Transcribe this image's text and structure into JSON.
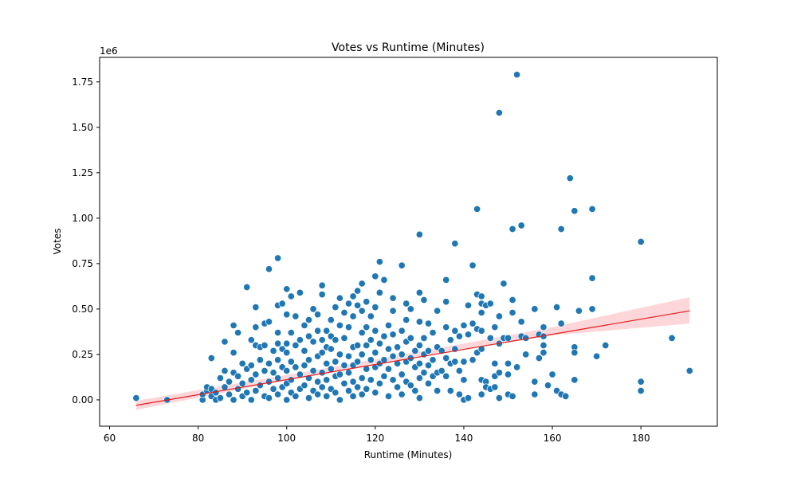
{
  "chart_data": {
    "type": "scatter",
    "title": "Votes vs Runtime (Minutes)",
    "xlabel": "Runtime (Minutes)",
    "ylabel": "Votes",
    "y_offset_label": "1e6",
    "xlim": [
      57.75,
      197.25
    ],
    "ylim": [
      -0.145,
      1.885
    ],
    "xticks": [
      60,
      80,
      100,
      120,
      140,
      160,
      180
    ],
    "xtick_labels": [
      "60",
      "80",
      "100",
      "120",
      "140",
      "160",
      "180"
    ],
    "yticks": [
      0.0,
      0.25,
      0.5,
      0.75,
      1.0,
      1.25,
      1.5,
      1.75
    ],
    "ytick_labels": [
      "0.00",
      "0.25",
      "0.50",
      "0.75",
      "1.00",
      "1.25",
      "1.50",
      "1.75"
    ],
    "grid": false,
    "point_color": "#1f77b4",
    "regression_color": "#e31a1c",
    "band_color": "#fbb4b9",
    "regression": {
      "x": [
        66,
        191
      ],
      "y": [
        -0.03,
        0.49
      ]
    },
    "confidence_band": {
      "x": [
        66,
        100,
        130,
        160,
        191
      ],
      "upper": [
        -0.005,
        0.137,
        0.265,
        0.4,
        0.565
      ],
      "lower": [
        -0.055,
        0.108,
        0.235,
        0.355,
        0.42
      ]
    },
    "points": [
      [
        66,
        0.01
      ],
      [
        73,
        0.0
      ],
      [
        81,
        0.0
      ],
      [
        81,
        0.03
      ],
      [
        82,
        0.05
      ],
      [
        82,
        0.07
      ],
      [
        83,
        0.02
      ],
      [
        83,
        0.06
      ],
      [
        83,
        0.23
      ],
      [
        84,
        0.0
      ],
      [
        84,
        0.04
      ],
      [
        85,
        0.12
      ],
      [
        85,
        0.01
      ],
      [
        86,
        0.16
      ],
      [
        86,
        0.32
      ],
      [
        86,
        0.07
      ],
      [
        87,
        0.03
      ],
      [
        87,
        0.1
      ],
      [
        88,
        0.41
      ],
      [
        88,
        0.26
      ],
      [
        88,
        0.15
      ],
      [
        88,
        0.0
      ],
      [
        89,
        0.37
      ],
      [
        89,
        0.13
      ],
      [
        89,
        0.06
      ],
      [
        90,
        0.2
      ],
      [
        90,
        0.09
      ],
      [
        90,
        0.02
      ],
      [
        91,
        0.62
      ],
      [
        91,
        0.17
      ],
      [
        91,
        0.04
      ],
      [
        92,
        0.33
      ],
      [
        92,
        0.19
      ],
      [
        92,
        0.11
      ],
      [
        92,
        0.0
      ],
      [
        93,
        0.51
      ],
      [
        93,
        0.4
      ],
      [
        93,
        0.3
      ],
      [
        93,
        0.14
      ],
      [
        93,
        0.05
      ],
      [
        94,
        0.29
      ],
      [
        94,
        0.22
      ],
      [
        94,
        0.08
      ],
      [
        95,
        0.42
      ],
      [
        95,
        0.3
      ],
      [
        95,
        0.16
      ],
      [
        95,
        0.02
      ],
      [
        96,
        0.72
      ],
      [
        96,
        0.43
      ],
      [
        96,
        0.2
      ],
      [
        96,
        0.1
      ],
      [
        96,
        0.01
      ],
      [
        97,
        0.27
      ],
      [
        97,
        0.15
      ],
      [
        97,
        0.06
      ],
      [
        98,
        0.78
      ],
      [
        98,
        0.52
      ],
      [
        98,
        0.37
      ],
      [
        98,
        0.31
      ],
      [
        98,
        0.22
      ],
      [
        98,
        0.12
      ],
      [
        98,
        0.03
      ],
      [
        99,
        0.53
      ],
      [
        99,
        0.28
      ],
      [
        99,
        0.18
      ],
      [
        99,
        0.07
      ],
      [
        100,
        0.61
      ],
      [
        100,
        0.47
      ],
      [
        100,
        0.31
      ],
      [
        100,
        0.26
      ],
      [
        100,
        0.16
      ],
      [
        100,
        0.09
      ],
      [
        100,
        0.0
      ],
      [
        101,
        0.57
      ],
      [
        101,
        0.37
      ],
      [
        101,
        0.21
      ],
      [
        101,
        0.11
      ],
      [
        101,
        0.04
      ],
      [
        102,
        0.46
      ],
      [
        102,
        0.3
      ],
      [
        102,
        0.18
      ],
      [
        102,
        0.02
      ],
      [
        103,
        0.59
      ],
      [
        103,
        0.33
      ],
      [
        103,
        0.14
      ],
      [
        103,
        0.06
      ],
      [
        104,
        0.41
      ],
      [
        104,
        0.27
      ],
      [
        104,
        0.19
      ],
      [
        104,
        0.08
      ],
      [
        105,
        0.44
      ],
      [
        105,
        0.35
      ],
      [
        105,
        0.22
      ],
      [
        105,
        0.12
      ],
      [
        105,
        0.01
      ],
      [
        106,
        0.5
      ],
      [
        106,
        0.32
      ],
      [
        106,
        0.16
      ],
      [
        106,
        0.05
      ],
      [
        107,
        0.47
      ],
      [
        107,
        0.38
      ],
      [
        107,
        0.24
      ],
      [
        107,
        0.1
      ],
      [
        107,
        0.03
      ],
      [
        108,
        0.63
      ],
      [
        108,
        0.58
      ],
      [
        108,
        0.33
      ],
      [
        108,
        0.26
      ],
      [
        108,
        0.15
      ],
      [
        108,
        0.07
      ],
      [
        109,
        0.38
      ],
      [
        109,
        0.29
      ],
      [
        109,
        0.2
      ],
      [
        109,
        0.11
      ],
      [
        109,
        0.02
      ],
      [
        110,
        0.44
      ],
      [
        110,
        0.35
      ],
      [
        110,
        0.28
      ],
      [
        110,
        0.17
      ],
      [
        110,
        0.06
      ],
      [
        111,
        0.51
      ],
      [
        111,
        0.33
      ],
      [
        111,
        0.21
      ],
      [
        111,
        0.13
      ],
      [
        111,
        0.04
      ],
      [
        112,
        0.56
      ],
      [
        112,
        0.41
      ],
      [
        112,
        0.25
      ],
      [
        112,
        0.14
      ],
      [
        112,
        0.0
      ],
      [
        113,
        0.48
      ],
      [
        113,
        0.34
      ],
      [
        113,
        0.19
      ],
      [
        113,
        0.09
      ],
      [
        114,
        0.53
      ],
      [
        114,
        0.4
      ],
      [
        114,
        0.24
      ],
      [
        114,
        0.15
      ],
      [
        114,
        0.05
      ],
      [
        115,
        0.57
      ],
      [
        115,
        0.46
      ],
      [
        115,
        0.29
      ],
      [
        115,
        0.19
      ],
      [
        115,
        0.1
      ],
      [
        115,
        0.02
      ],
      [
        116,
        0.6
      ],
      [
        116,
        0.52
      ],
      [
        116,
        0.3
      ],
      [
        116,
        0.21
      ],
      [
        116,
        0.07
      ],
      [
        117,
        0.64
      ],
      [
        117,
        0.49
      ],
      [
        117,
        0.37
      ],
      [
        117,
        0.25
      ],
      [
        117,
        0.12
      ],
      [
        117,
        0.03
      ],
      [
        118,
        0.54
      ],
      [
        118,
        0.4
      ],
      [
        118,
        0.3
      ],
      [
        118,
        0.17
      ],
      [
        118,
        0.06
      ],
      [
        119,
        0.46
      ],
      [
        119,
        0.33
      ],
      [
        119,
        0.22
      ],
      [
        119,
        0.11
      ],
      [
        120,
        0.68
      ],
      [
        120,
        0.51
      ],
      [
        120,
        0.38
      ],
      [
        120,
        0.26
      ],
      [
        120,
        0.18
      ],
      [
        120,
        0.04
      ],
      [
        121,
        0.76
      ],
      [
        121,
        0.59
      ],
      [
        121,
        0.31
      ],
      [
        121,
        0.2
      ],
      [
        121,
        0.09
      ],
      [
        122,
        0.66
      ],
      [
        122,
        0.35
      ],
      [
        122,
        0.22
      ],
      [
        122,
        0.13
      ],
      [
        123,
        0.41
      ],
      [
        123,
        0.28
      ],
      [
        123,
        0.17
      ],
      [
        123,
        0.02
      ],
      [
        124,
        0.56
      ],
      [
        124,
        0.49
      ],
      [
        124,
        0.36
      ],
      [
        124,
        0.24
      ],
      [
        124,
        0.11
      ],
      [
        125,
        0.29
      ],
      [
        125,
        0.2
      ],
      [
        125,
        0.07
      ],
      [
        126,
        0.74
      ],
      [
        126,
        0.38
      ],
      [
        126,
        0.25
      ],
      [
        126,
        0.14
      ],
      [
        126,
        0.03
      ],
      [
        127,
        0.53
      ],
      [
        127,
        0.44
      ],
      [
        127,
        0.32
      ],
      [
        127,
        0.21
      ],
      [
        127,
        0.1
      ],
      [
        128,
        0.5
      ],
      [
        128,
        0.34
      ],
      [
        128,
        0.23
      ],
      [
        128,
        0.08
      ],
      [
        129,
        0.27
      ],
      [
        129,
        0.18
      ],
      [
        129,
        0.05
      ],
      [
        130,
        0.91
      ],
      [
        130,
        0.59
      ],
      [
        130,
        0.43
      ],
      [
        130,
        0.3
      ],
      [
        130,
        0.2
      ],
      [
        130,
        0.12
      ],
      [
        130,
        0.01
      ],
      [
        131,
        0.55
      ],
      [
        131,
        0.34
      ],
      [
        131,
        0.25
      ],
      [
        131,
        0.15
      ],
      [
        132,
        0.42
      ],
      [
        132,
        0.27
      ],
      [
        132,
        0.19
      ],
      [
        132,
        0.09
      ],
      [
        133,
        0.37
      ],
      [
        133,
        0.22
      ],
      [
        133,
        0.13
      ],
      [
        134,
        0.49
      ],
      [
        134,
        0.29
      ],
      [
        134,
        0.15
      ],
      [
        134,
        0.05
      ],
      [
        135,
        0.27
      ],
      [
        135,
        0.16
      ],
      [
        136,
        0.66
      ],
      [
        136,
        0.54
      ],
      [
        136,
        0.4
      ],
      [
        136,
        0.23
      ],
      [
        136,
        0.13
      ],
      [
        137,
        0.33
      ],
      [
        137,
        0.2
      ],
      [
        137,
        0.05
      ],
      [
        138,
        0.86
      ],
      [
        138,
        0.38
      ],
      [
        138,
        0.28
      ],
      [
        138,
        0.21
      ],
      [
        139,
        0.35
      ],
      [
        139,
        0.16
      ],
      [
        139,
        0.03
      ],
      [
        140,
        0.41
      ],
      [
        140,
        0.21
      ],
      [
        140,
        0.11
      ],
      [
        140,
        0.0
      ],
      [
        141,
        0.52
      ],
      [
        141,
        0.36
      ],
      [
        141,
        0.01
      ],
      [
        142,
        0.74
      ],
      [
        142,
        0.42
      ],
      [
        142,
        0.22
      ],
      [
        143,
        1.05
      ],
      [
        143,
        0.58
      ],
      [
        143,
        0.39
      ],
      [
        143,
        0.26
      ],
      [
        144,
        0.57
      ],
      [
        144,
        0.53
      ],
      [
        144,
        0.48
      ],
      [
        144,
        0.38
      ],
      [
        144,
        0.28
      ],
      [
        144,
        0.11
      ],
      [
        144,
        0.03
      ],
      [
        145,
        0.52
      ],
      [
        145,
        0.1
      ],
      [
        145,
        0.07
      ],
      [
        146,
        0.53
      ],
      [
        146,
        0.34
      ],
      [
        146,
        0.06
      ],
      [
        147,
        0.4
      ],
      [
        147,
        0.2
      ],
      [
        147,
        0.13
      ],
      [
        147,
        0.07
      ],
      [
        148,
        1.58
      ],
      [
        148,
        0.46
      ],
      [
        148,
        0.31
      ],
      [
        148,
        0.15
      ],
      [
        148,
        0.01
      ],
      [
        149,
        0.64
      ],
      [
        149,
        0.34
      ],
      [
        150,
        0.34
      ],
      [
        150,
        0.2
      ],
      [
        150,
        0.14
      ],
      [
        150,
        0.03
      ],
      [
        151,
        0.94
      ],
      [
        151,
        0.55
      ],
      [
        151,
        0.48
      ],
      [
        151,
        0.02
      ],
      [
        152,
        1.79
      ],
      [
        152,
        0.18
      ],
      [
        153,
        0.96
      ],
      [
        153,
        0.43
      ],
      [
        153,
        0.35
      ],
      [
        154,
        0.34
      ],
      [
        154,
        0.25
      ],
      [
        156,
        0.5
      ],
      [
        156,
        0.1
      ],
      [
        156,
        0.03
      ],
      [
        157,
        0.36
      ],
      [
        157,
        0.23
      ],
      [
        158,
        0.4
      ],
      [
        158,
        0.35
      ],
      [
        158,
        0.3
      ],
      [
        158,
        0.26
      ],
      [
        159,
        0.08
      ],
      [
        160,
        0.14
      ],
      [
        161,
        0.51
      ],
      [
        161,
        0.05
      ],
      [
        162,
        0.94
      ],
      [
        162,
        0.42
      ],
      [
        162,
        0.03
      ],
      [
        163,
        0.02
      ],
      [
        164,
        1.22
      ],
      [
        165,
        1.04
      ],
      [
        165,
        0.29
      ],
      [
        165,
        0.26
      ],
      [
        165,
        0.11
      ],
      [
        166,
        0.49
      ],
      [
        169,
        1.05
      ],
      [
        169,
        0.67
      ],
      [
        169,
        0.5
      ],
      [
        170,
        0.24
      ],
      [
        172,
        0.3
      ],
      [
        180,
        0.87
      ],
      [
        180,
        0.1
      ],
      [
        180,
        0.05
      ],
      [
        187,
        0.34
      ],
      [
        191,
        0.16
      ]
    ]
  }
}
